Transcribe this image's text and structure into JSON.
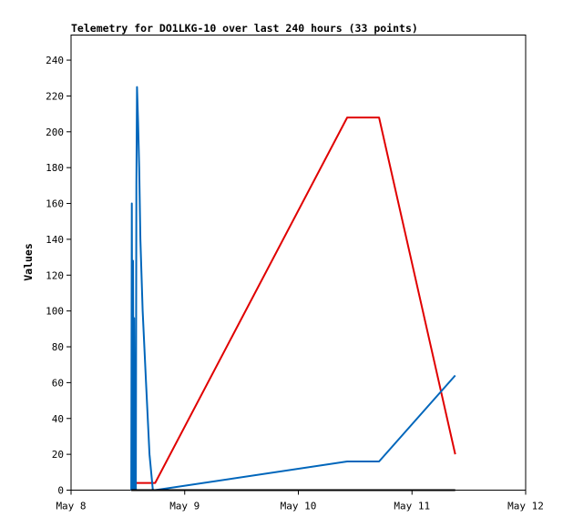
{
  "chart_data": {
    "type": "line",
    "title": "Telemetry for DO1LKG-10 over last 240 hours (33 points)",
    "xlabel": "",
    "ylabel": "Values",
    "x_ticks": [
      "May 8",
      "May 9",
      "May 10",
      "May 11",
      "May 12"
    ],
    "x_tick_values": [
      0,
      1,
      2,
      3,
      4
    ],
    "xlim": [
      0,
      4
    ],
    "y_ticks": [
      0,
      20,
      40,
      60,
      80,
      100,
      120,
      140,
      160,
      180,
      200,
      220,
      240
    ],
    "ylim": [
      0,
      254
    ],
    "grid": false,
    "legend": "none",
    "series": [
      {
        "color": "#e00000",
        "points": [
          [
            0.53,
            4
          ],
          [
            0.74,
            4
          ],
          [
            2.43,
            208
          ],
          [
            2.71,
            208
          ],
          [
            3.38,
            20
          ]
        ]
      },
      {
        "color": "#0066bb",
        "points": [
          [
            0.53,
            0
          ],
          [
            0.535,
            160
          ],
          [
            0.54,
            0
          ],
          [
            0.545,
            128
          ],
          [
            0.55,
            0
          ],
          [
            0.555,
            96
          ],
          [
            0.56,
            0
          ],
          [
            0.565,
            55
          ],
          [
            0.57,
            0
          ],
          [
            0.575,
            170
          ],
          [
            0.58,
            225
          ],
          [
            0.59,
            205
          ],
          [
            0.6,
            180
          ],
          [
            0.61,
            140
          ],
          [
            0.63,
            100
          ],
          [
            0.66,
            60
          ],
          [
            0.69,
            20
          ],
          [
            0.72,
            0
          ],
          [
            0.74,
            0
          ],
          [
            2.43,
            16
          ],
          [
            2.71,
            16
          ],
          [
            3.38,
            64
          ]
        ]
      },
      {
        "color": "#000000",
        "points": [
          [
            0.53,
            0
          ],
          [
            0.74,
            0
          ],
          [
            2.43,
            0
          ],
          [
            2.71,
            0
          ],
          [
            3.38,
            0
          ]
        ]
      }
    ]
  }
}
